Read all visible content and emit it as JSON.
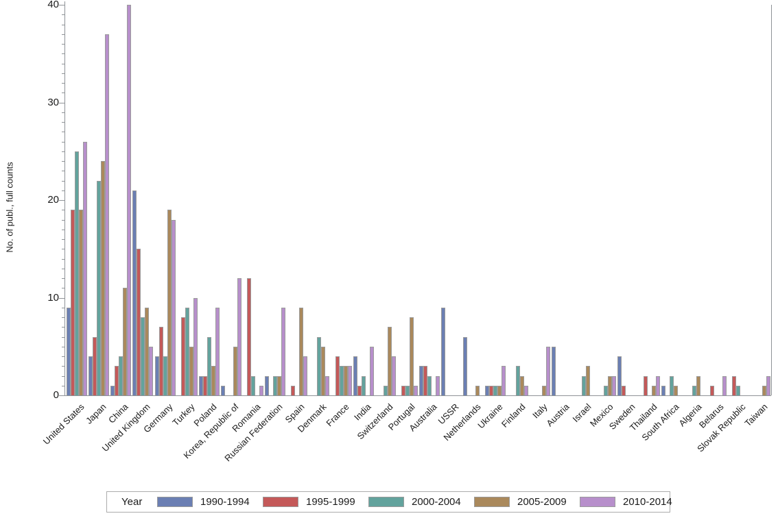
{
  "chart_data": {
    "type": "bar",
    "title": "",
    "xlabel": "",
    "ylabel": "No. of publ., full counts",
    "ylim": [
      0,
      40
    ],
    "y_ticks": [
      0,
      10,
      20,
      30,
      40
    ],
    "y_minor_tick_step": 1,
    "grid": false,
    "legend_position": "bottom",
    "legend_title": "Year",
    "categories": [
      "United States",
      "Japan",
      "China",
      "United Kingdom",
      "Germany",
      "Turkey",
      "Poland",
      "Korea, Republic of",
      "Romania",
      "Russian Federation",
      "Spain",
      "Denmark",
      "France",
      "India",
      "Switzerland",
      "Portugal",
      "Australia",
      "USSR",
      "Netherlands",
      "Ukraine",
      "Finland",
      "Italy",
      "Austria",
      "Israel",
      "Mexico",
      "Sweden",
      "Thailand",
      "South Africa",
      "Algeria",
      "Belarus",
      "Slovak Republic",
      "Taiwan"
    ],
    "series": [
      {
        "name": "1990-1994",
        "color": "#6b7fb3",
        "values": [
          9,
          4,
          1,
          21,
          4,
          0,
          2,
          1,
          0,
          2,
          0,
          0,
          0,
          4,
          0,
          0,
          3,
          9,
          6,
          1,
          0,
          0,
          5,
          0,
          0,
          4,
          0,
          1,
          0,
          0,
          0,
          0
        ]
      },
      {
        "name": "1995-1999",
        "color": "#c45959",
        "values": [
          19,
          6,
          3,
          15,
          7,
          8,
          2,
          0,
          12,
          0,
          1,
          0,
          4,
          1,
          0,
          1,
          3,
          0,
          0,
          1,
          0,
          0,
          0,
          0,
          0,
          1,
          2,
          0,
          0,
          1,
          2,
          0
        ]
      },
      {
        "name": "2000-2004",
        "color": "#63a39d",
        "values": [
          25,
          22,
          4,
          8,
          4,
          9,
          6,
          0,
          2,
          2,
          0,
          6,
          3,
          2,
          1,
          1,
          2,
          0,
          0,
          1,
          3,
          0,
          0,
          2,
          1,
          0,
          0,
          2,
          1,
          0,
          1,
          0
        ]
      },
      {
        "name": "2005-2009",
        "color": "#aa895c",
        "values": [
          19,
          24,
          11,
          9,
          19,
          5,
          3,
          5,
          0,
          2,
          9,
          5,
          3,
          0,
          7,
          8,
          0,
          0,
          1,
          1,
          2,
          1,
          0,
          3,
          2,
          0,
          1,
          1,
          2,
          0,
          0,
          1
        ]
      },
      {
        "name": "2010-2014",
        "color": "#b78fcb",
        "values": [
          26,
          37,
          40,
          5,
          18,
          10,
          9,
          12,
          1,
          9,
          4,
          2,
          3,
          5,
          4,
          1,
          2,
          0,
          0,
          3,
          1,
          5,
          0,
          0,
          2,
          0,
          2,
          0,
          0,
          2,
          0,
          2
        ]
      }
    ]
  }
}
